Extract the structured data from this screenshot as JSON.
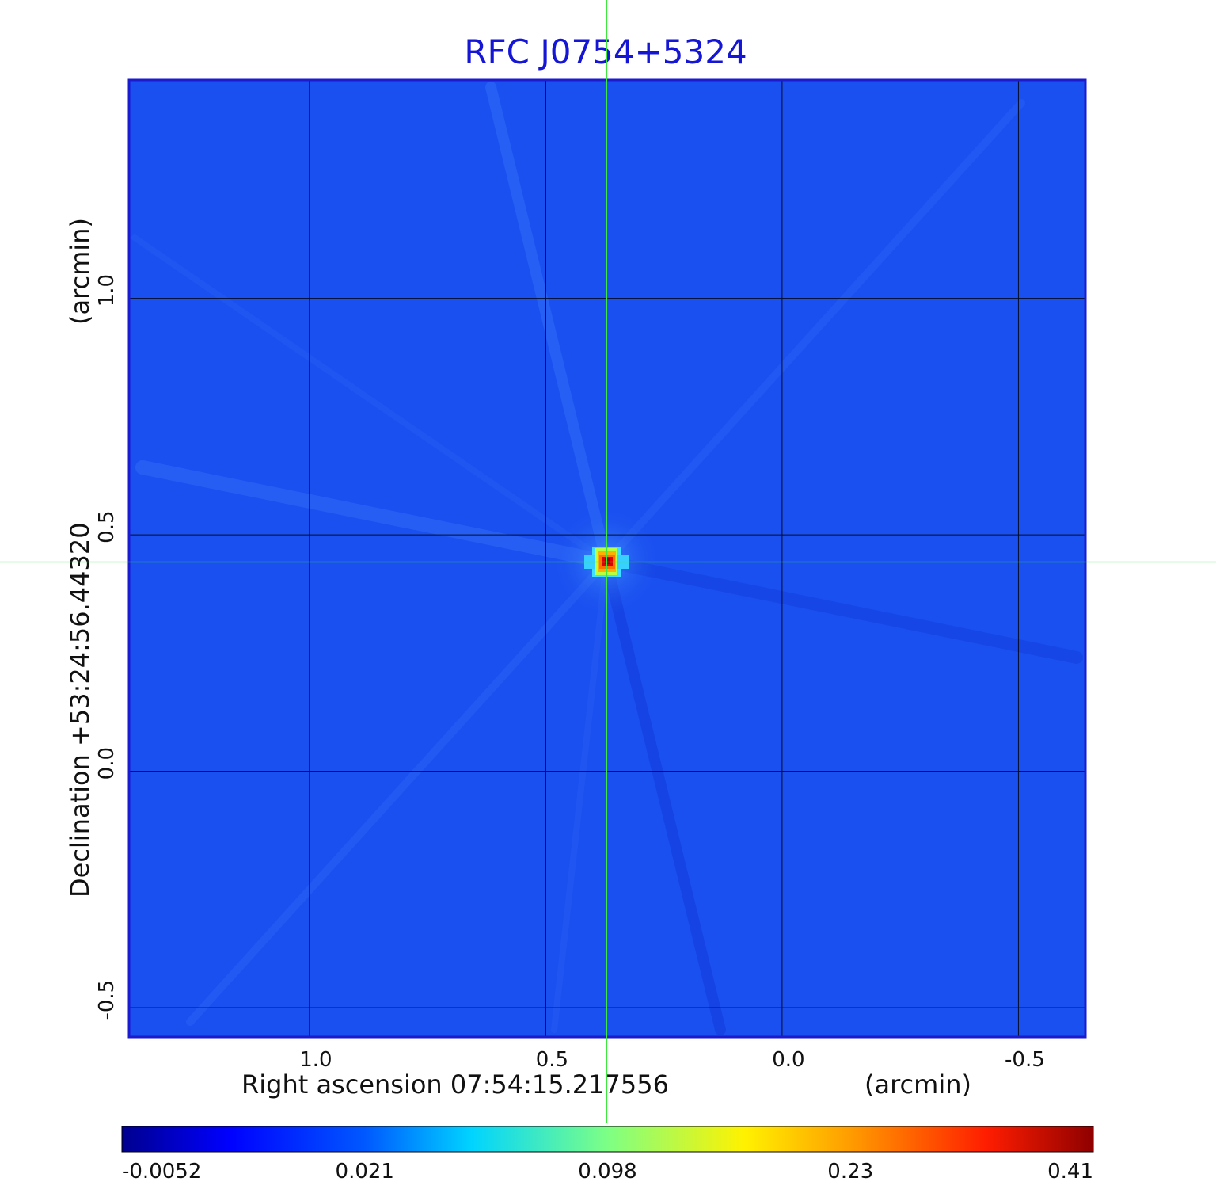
{
  "chart_data": {
    "type": "heatmap",
    "title": "RFC J0754+5324",
    "xlabel": "Right ascension  07:54:15.217556",
    "xunit": "(arcmin)",
    "ylabel": "Declination  +53:24:56.44320",
    "yunit": "(arcmin)",
    "x_ticks": [
      "1.0",
      "0.5",
      "0.0",
      "-0.5"
    ],
    "y_ticks": [
      "1.0",
      "0.5",
      "0.0",
      "-0.5"
    ],
    "xlim": [
      1.38,
      -0.64
    ],
    "ylim": [
      -0.56,
      1.46
    ],
    "grid": true,
    "crosshair": {
      "x": 0.37,
      "y": 0.44
    },
    "source_peak": {
      "x": 0.37,
      "y": 0.44,
      "value": 0.41
    },
    "colorbar": {
      "ticks": [
        "-0.0052",
        "0.021",
        "0.098",
        "0.23",
        "0.41"
      ],
      "range": [
        -0.0052,
        0.41
      ],
      "colormap": "jet"
    },
    "colors": {
      "title": "#1515d6",
      "background_map": "#1a50f0",
      "frame": "#1a1ad0",
      "grid": "#000000",
      "crosshair": "#3ee63e"
    }
  }
}
